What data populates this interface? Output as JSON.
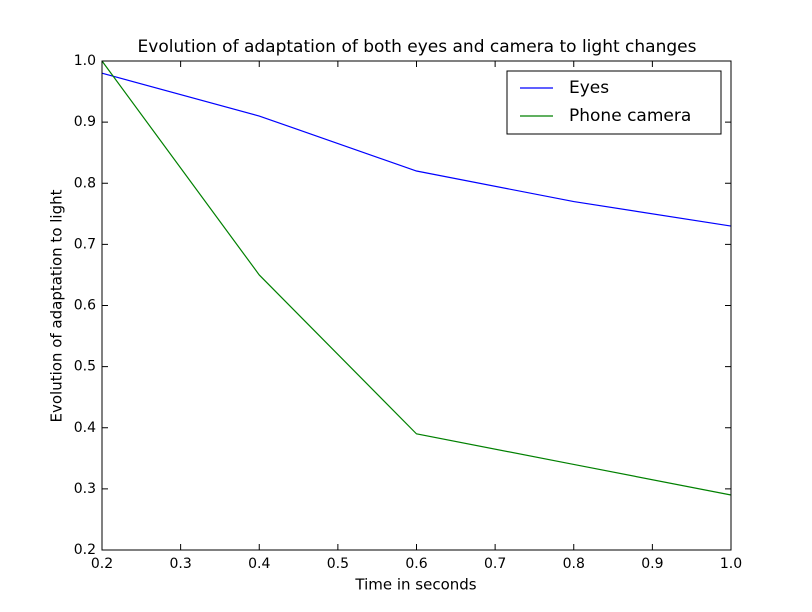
{
  "chart_data": {
    "type": "line",
    "title": "Evolution of adaptation of both eyes and camera to light changes",
    "x_label": "Time in seconds",
    "y_label": "Evolution of adaptation to light",
    "x": [
      0.2,
      0.4,
      0.6,
      0.8,
      1.0
    ],
    "series": [
      {
        "name": "Eyes",
        "color": "#0000ff",
        "values": [
          0.98,
          0.91,
          0.82,
          0.77,
          0.73
        ]
      },
      {
        "name": "Phone camera",
        "color": "#008000",
        "values": [
          1.0,
          0.65,
          0.39,
          0.34,
          0.29
        ]
      }
    ],
    "xlim": [
      0.2,
      1.0
    ],
    "xticks": [
      0.2,
      0.3,
      0.4,
      0.5,
      0.6,
      0.7,
      0.8,
      0.9,
      {
        "value": 1.0,
        "label": "1.0"
      }
    ],
    "ylim": [
      0.2,
      1.0
    ],
    "yticks": [
      0.2,
      0.3,
      0.4,
      0.5,
      0.6,
      0.7,
      0.8,
      0.9,
      {
        "value": 1.0,
        "label": "1.0"
      }
    ],
    "grid": false,
    "legend": "upper-right"
  }
}
